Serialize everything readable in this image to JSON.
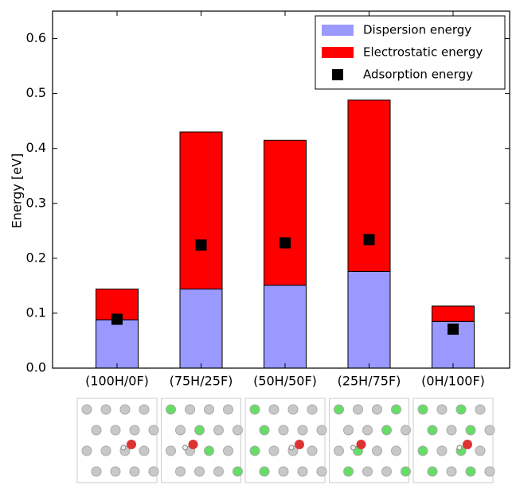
{
  "chart_data": {
    "type": "stacked-bar-scatter",
    "y_label": "Energy [eV]",
    "categories": [
      "(100H/0F)",
      "(75H/25F)",
      "(50H/50F)",
      "(25H/75F)",
      "(0H/100F)"
    ],
    "series": [
      {
        "name": "Dispersion energy",
        "color": "#9999ff",
        "kind": "bar",
        "values": [
          0.088,
          0.144,
          0.151,
          0.176,
          0.085
        ]
      },
      {
        "name": "Electrostatic energy",
        "color": "#ff0000",
        "kind": "bar",
        "values": [
          0.056,
          0.286,
          0.264,
          0.312,
          0.028
        ]
      },
      {
        "name": "Adsorption energy",
        "color": "#000000",
        "kind": "marker",
        "values": [
          0.089,
          0.224,
          0.228,
          0.234,
          0.071
        ]
      }
    ],
    "ylim": [
      0,
      0.65
    ],
    "yticks": [
      {
        "value": 0,
        "label": "0.0"
      },
      0.1,
      0.2,
      0.3,
      0.4,
      0.5,
      0.6
    ],
    "legend": "upper right"
  }
}
